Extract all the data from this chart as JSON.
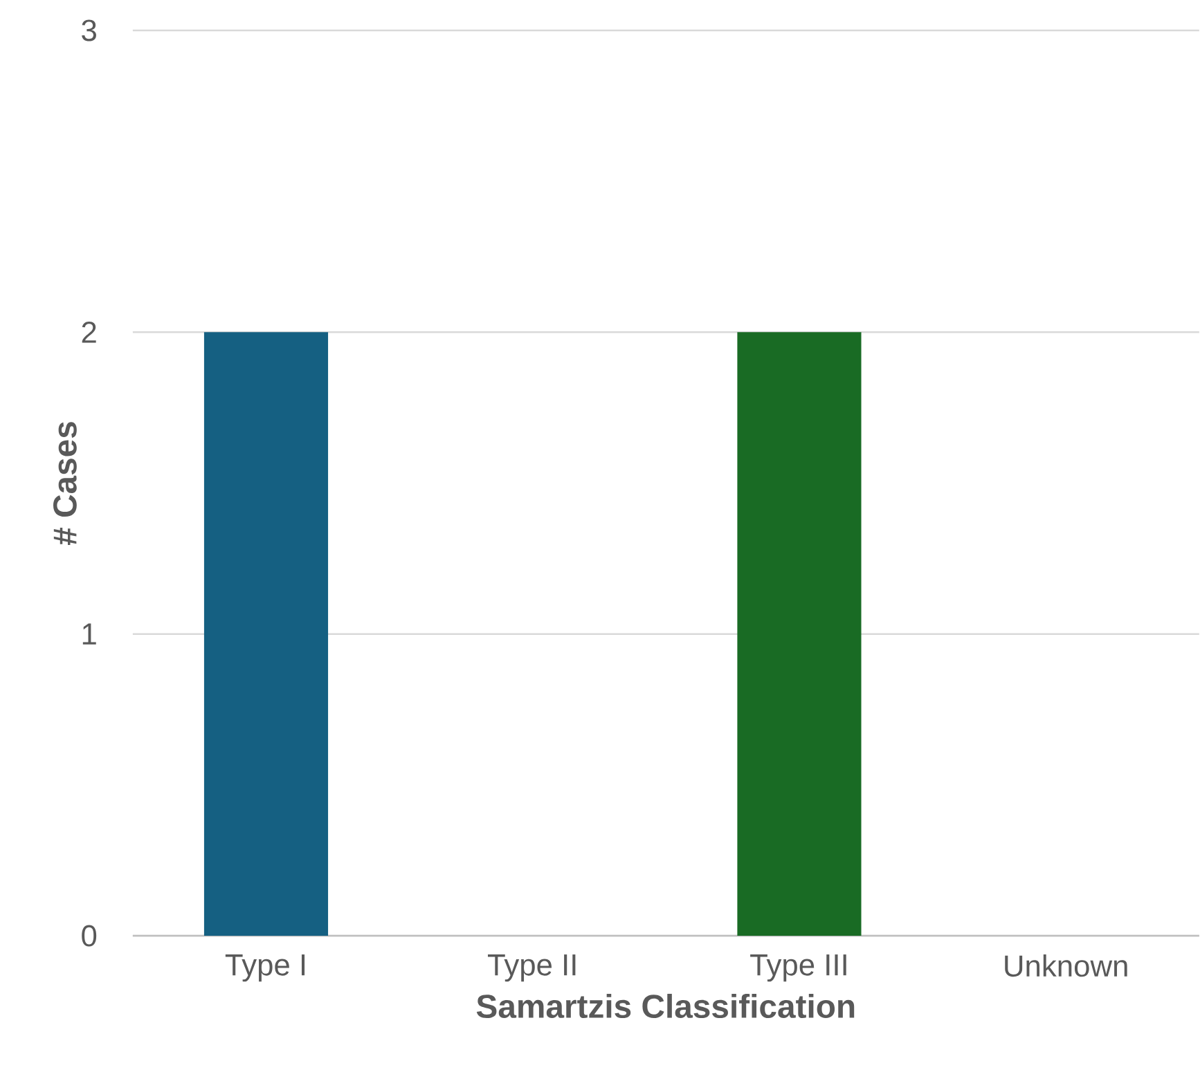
{
  "chart_data": {
    "type": "bar",
    "xlabel": "Samartzis Classification",
    "ylabel": "# Cases",
    "categories": [
      "Type I",
      "Type II",
      "Type III",
      "Unknown"
    ],
    "values": [
      2,
      0,
      2,
      0
    ],
    "colors": [
      "#156082",
      "#e97132",
      "#196b24",
      "#0f9ed5"
    ],
    "ylim": [
      0,
      3
    ],
    "yticks": [
      0,
      1,
      2,
      3
    ],
    "grid": "y"
  }
}
